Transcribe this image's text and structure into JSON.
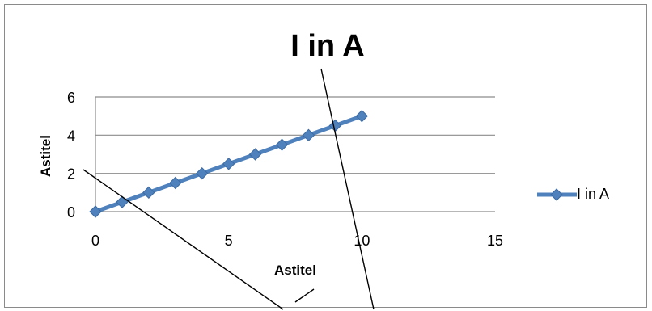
{
  "chart_data": {
    "type": "line",
    "title": "I in A",
    "xlabel": "Astitel",
    "ylabel": "Astitel",
    "x": [
      0,
      1,
      2,
      3,
      4,
      5,
      6,
      7,
      8,
      9,
      10
    ],
    "series": [
      {
        "name": "I in A",
        "values": [
          0,
          0.5,
          1,
          1.5,
          2,
          2.5,
          3,
          3.5,
          4,
          4.5,
          5
        ]
      }
    ],
    "xlim": [
      0,
      15
    ],
    "ylim": [
      0,
      6
    ],
    "xticks": [
      "0",
      "5",
      "10",
      "15"
    ],
    "yticks": [
      "0",
      "2",
      "4",
      "6"
    ],
    "grid": "horizontal",
    "legend": "right",
    "series_color": "#4F81BD",
    "marker": "diamond"
  }
}
